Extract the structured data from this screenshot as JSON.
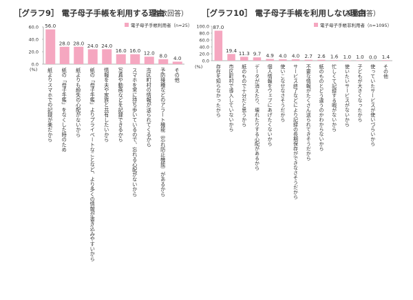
{
  "chart_data": [
    {
      "type": "bar",
      "title": "［グラフ9］ 電子母子手帳を利用する理由",
      "subtitle": "（複数回答）",
      "legend": "電子母子手帳利用者（n=25）",
      "ylabel": "(%)",
      "ylim": [
        0,
        60
      ],
      "yticks": [
        "60.0",
        "40.0",
        "20.0",
        "0.0"
      ],
      "color": "#f5a7c0",
      "categories": [
        "紙よりスマホでの記録が楽だから",
        "紙の「母子手帳」をなくした時のため",
        "紙よりも紛失の心配がないから",
        "紙の「母子手帳」よりプライベートなことなど、より多くの情報が書き込みやすいから",
        "情報を夫や家族と共有したいから",
        "写真や動画などを記録できるから",
        "スマホを常に持ち歩いているので、忘れる心配がないから",
        "市区町村の情報が送られてくるから",
        "予防接種などのアラート機能（忘れ防止機能）があるから",
        "その他"
      ],
      "values": [
        56.0,
        28.0,
        28.0,
        24.0,
        24.0,
        16.0,
        16.0,
        12.0,
        8.0,
        4.0
      ],
      "value_labels": [
        "56.0",
        "28.0",
        "28.0",
        "24.0",
        "24.0",
        "16.0",
        "16.0",
        "12.0",
        "8.0",
        "4.0"
      ]
    },
    {
      "type": "bar",
      "title": "［グラフ10］ 電子母子手帳を利用しない理由",
      "subtitle": "（複数回答）",
      "legend": "電子母子手帳非利用者（n=1095）",
      "ylabel": "(%)",
      "ylim": [
        0,
        100
      ],
      "yticks": [
        "100.0",
        "80.0",
        "60.0",
        "40.0",
        "20.0",
        "0.0"
      ],
      "color": "#f5a7c0",
      "categories": [
        "存在を知らなかったから",
        "市区町村で導入していないから",
        "紙のもので十分だと思うから",
        "データが消えたり、壊れたりする心配があるから",
        "個人情報をウェブにあげたくないから",
        "使いこなせなさそうだから",
        "サービス終了などにより記録の長期保存ができなさそうだから",
        "不要な情報がたくさん送られてきそうだから",
        "紙のものとどう違うのかわからないから",
        "忙しくて記録する暇がないから",
        "使いたいサービスがないから",
        "子どもが大きくなったから",
        "使っていたサービスが使いづらいから",
        "その他"
      ],
      "values": [
        87.0,
        19.4,
        11.3,
        9.7,
        4.9,
        4.0,
        4.0,
        2.7,
        2.6,
        1.6,
        1.0,
        1.0,
        0.0,
        1.4
      ],
      "value_labels": [
        "87.0",
        "19.4",
        "11.3",
        "9.7",
        "4.9",
        "4.0",
        "4.0",
        "2.7",
        "2.6",
        "1.6",
        "1.0",
        "1.0",
        "0.0",
        "1.4"
      ]
    }
  ]
}
